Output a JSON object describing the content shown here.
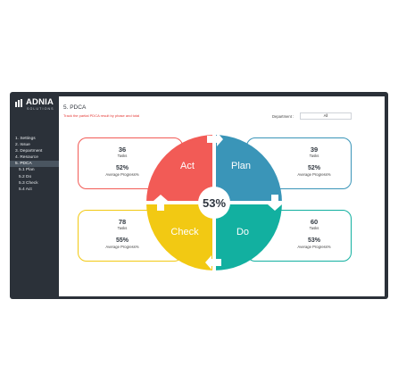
{
  "brand": {
    "name": "ADNIA",
    "sub": "SOLUTIONS"
  },
  "sidebar": {
    "items": [
      {
        "label": "1. Settings",
        "active": false,
        "sub": false
      },
      {
        "label": "2. Issue",
        "active": false,
        "sub": false
      },
      {
        "label": "3. Department",
        "active": false,
        "sub": false
      },
      {
        "label": "4. Resource",
        "active": false,
        "sub": false
      },
      {
        "label": "5. PDCA",
        "active": true,
        "sub": false
      },
      {
        "label": "5.1 Plan",
        "active": false,
        "sub": true
      },
      {
        "label": "5.2 Do",
        "active": false,
        "sub": true
      },
      {
        "label": "5.3 Check",
        "active": false,
        "sub": true
      },
      {
        "label": "5.4 Act",
        "active": false,
        "sub": true
      }
    ]
  },
  "header": {
    "title": "5. PDCA",
    "subtitle": "Track the partial PDCA result by phase and total",
    "department_label": "Department :",
    "department_value": "All"
  },
  "pdca": {
    "total": "53%",
    "act": {
      "label": "Act",
      "tasks": "36",
      "tasks_label": "Tasks",
      "progress": "52%",
      "progress_label": "Average Progress%"
    },
    "plan": {
      "label": "Plan",
      "tasks": "39",
      "tasks_label": "Tasks",
      "progress": "52%",
      "progress_label": "Average Progress%"
    },
    "check": {
      "label": "Check",
      "tasks": "78",
      "tasks_label": "Tasks",
      "progress": "55%",
      "progress_label": "Average Progress%"
    },
    "do": {
      "label": "Do",
      "tasks": "60",
      "tasks_label": "Tasks",
      "progress": "53%",
      "progress_label": "Average Progress%"
    }
  },
  "colors": {
    "act": "#f25b56",
    "plan": "#3a95b8",
    "check": "#f2c913",
    "do": "#12b0a0",
    "sidebar": "#2b3139"
  }
}
